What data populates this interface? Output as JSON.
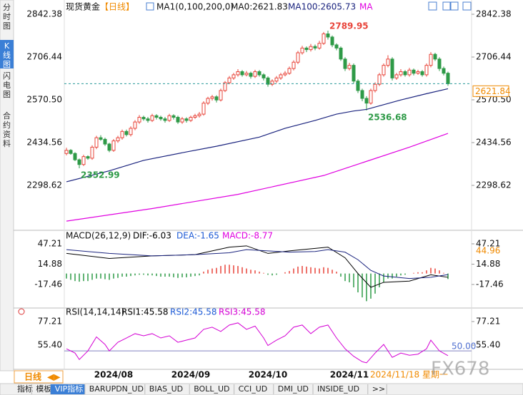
{
  "chart_data": {
    "type": "candlestick",
    "header": {
      "symbol": "现货黄金",
      "period": "【日线】",
      "indicator": "MA1(0,100,200,0)",
      "ma0": "MA0:2621.83"
    },
    "up_color": "#e8443a",
    "down_color": "#2e9a47",
    "ylim": [
      2162.67,
      2869.57
    ],
    "yticks": [
      2842.38,
      2706.44,
      {
        "value": 2570.5,
        "label": "2570.50"
      },
      2434.56,
      2298.62
    ],
    "categories": [
      null,
      null,
      null,
      null,
      null,
      null,
      null,
      null,
      null,
      null,
      null,
      "2024/08",
      null,
      null,
      null,
      null,
      null,
      null,
      null,
      null,
      null,
      null,
      null,
      null,
      null,
      null,
      null,
      null,
      null,
      "2024/09",
      null,
      null,
      null,
      null,
      null,
      null,
      null,
      null,
      null,
      null,
      null,
      null,
      null,
      null,
      null,
      null,
      null,
      "2024/10",
      null,
      null,
      null,
      null,
      null,
      null,
      null,
      null,
      null,
      null,
      null,
      null,
      null,
      null,
      null,
      null,
      null,
      null,
      "2024/11",
      null,
      null,
      null,
      null,
      null,
      null,
      null,
      null,
      null,
      null,
      null,
      null,
      null,
      null,
      null,
      null,
      null,
      null,
      null,
      null,
      null,
      null,
      null
    ],
    "candles": [
      [
        2400,
        2418,
        2394,
        2410
      ],
      [
        2410,
        2414,
        2396,
        2400
      ],
      [
        2400,
        2404,
        2376,
        2380
      ],
      [
        2380,
        2384,
        2352.99,
        2365
      ],
      [
        2365,
        2396,
        2360,
        2390
      ],
      [
        2390,
        2394,
        2380,
        2385
      ],
      [
        2385,
        2426,
        2380,
        2420
      ],
      [
        2420,
        2456,
        2414,
        2450
      ],
      [
        2450,
        2458,
        2440,
        2445
      ],
      [
        2445,
        2450,
        2424,
        2430
      ],
      [
        2430,
        2434,
        2404,
        2410
      ],
      [
        2410,
        2446,
        2405,
        2440
      ],
      [
        2440,
        2456,
        2434,
        2450
      ],
      [
        2450,
        2476,
        2444,
        2470
      ],
      [
        2470,
        2476,
        2454,
        2460
      ],
      [
        2460,
        2486,
        2454,
        2480
      ],
      [
        2480,
        2506,
        2474,
        2500
      ],
      [
        2500,
        2522,
        2494,
        2515
      ],
      [
        2515,
        2520,
        2504,
        2510
      ],
      [
        2510,
        2516,
        2498,
        2505
      ],
      [
        2505,
        2526,
        2500,
        2520
      ],
      [
        2520,
        2525,
        2508,
        2515
      ],
      [
        2515,
        2520,
        2504,
        2510
      ],
      [
        2510,
        2516,
        2498,
        2505
      ],
      [
        2505,
        2526,
        2500,
        2520
      ],
      [
        2520,
        2525,
        2508,
        2515
      ],
      [
        2515,
        2520,
        2494,
        2500
      ],
      [
        2500,
        2516,
        2494,
        2510
      ],
      [
        2510,
        2515,
        2498,
        2505
      ],
      [
        2505,
        2520,
        2500,
        2515
      ],
      [
        2515,
        2526,
        2510,
        2520
      ],
      [
        2520,
        2532,
        2514,
        2525
      ],
      [
        2525,
        2566,
        2520,
        2560
      ],
      [
        2560,
        2580,
        2554,
        2575
      ],
      [
        2575,
        2586,
        2568,
        2580
      ],
      [
        2580,
        2585,
        2562,
        2570
      ],
      [
        2570,
        2606,
        2565,
        2600
      ],
      [
        2600,
        2630,
        2595,
        2625
      ],
      [
        2625,
        2646,
        2620,
        2640
      ],
      [
        2640,
        2656,
        2634,
        2650
      ],
      [
        2650,
        2668,
        2644,
        2660
      ],
      [
        2660,
        2665,
        2644,
        2650
      ],
      [
        2650,
        2662,
        2645,
        2655
      ],
      [
        2655,
        2660,
        2638,
        2645
      ],
      [
        2645,
        2666,
        2640,
        2660
      ],
      [
        2660,
        2665,
        2644,
        2650
      ],
      [
        2650,
        2655,
        2632,
        2640
      ],
      [
        2640,
        2645,
        2612,
        2620
      ],
      [
        2620,
        2636,
        2614,
        2630
      ],
      [
        2630,
        2646,
        2624,
        2640
      ],
      [
        2640,
        2656,
        2634,
        2650
      ],
      [
        2650,
        2662,
        2645,
        2655
      ],
      [
        2655,
        2676,
        2650,
        2670
      ],
      [
        2670,
        2696,
        2664,
        2690
      ],
      [
        2690,
        2726,
        2684,
        2720
      ],
      [
        2720,
        2742,
        2714,
        2735
      ],
      [
        2735,
        2740,
        2722,
        2730
      ],
      [
        2730,
        2748,
        2724,
        2740
      ],
      [
        2740,
        2746,
        2728,
        2735
      ],
      [
        2735,
        2758,
        2730,
        2750
      ],
      [
        2750,
        2786,
        2745,
        2780
      ],
      [
        2780,
        2789.95,
        2762,
        2770
      ],
      [
        2770,
        2775,
        2738,
        2745
      ],
      [
        2745,
        2750,
        2728,
        2735
      ],
      [
        2735,
        2740,
        2694,
        2700
      ],
      [
        2700,
        2706,
        2662,
        2670
      ],
      [
        2670,
        2688,
        2664,
        2680
      ],
      [
        2680,
        2686,
        2622,
        2630
      ],
      [
        2630,
        2636,
        2592,
        2600
      ],
      [
        2600,
        2606,
        2566,
        2575
      ],
      [
        2575,
        2582,
        2536.68,
        2560
      ],
      [
        2560,
        2606,
        2555,
        2600
      ],
      [
        2600,
        2626,
        2594,
        2620
      ],
      [
        2620,
        2656,
        2614,
        2650
      ],
      [
        2650,
        2686,
        2644,
        2680
      ],
      [
        2680,
        2712,
        2674,
        2700
      ],
      [
        2700,
        2706,
        2632,
        2640
      ],
      [
        2640,
        2656,
        2634,
        2650
      ],
      [
        2650,
        2668,
        2644,
        2660
      ],
      [
        2660,
        2665,
        2644,
        2650
      ],
      [
        2650,
        2672,
        2644,
        2665
      ],
      [
        2665,
        2670,
        2648,
        2655
      ],
      [
        2655,
        2666,
        2650,
        2660
      ],
      [
        2660,
        2665,
        2644,
        2650
      ],
      [
        2650,
        2686,
        2644,
        2680
      ],
      [
        2680,
        2722,
        2674,
        2715
      ],
      [
        2715,
        2720,
        2694,
        2700
      ],
      [
        2700,
        2706,
        2662,
        2670
      ],
      [
        2670,
        2676,
        2648,
        2655
      ],
      [
        2655,
        2660,
        2615,
        2621.84
      ]
    ],
    "lines": [
      {
        "name": "MA100:2605.73",
        "color": "#1a237e",
        "x": [
          0,
          10,
          18,
          28,
          35,
          45,
          51,
          58,
          63,
          67,
          70,
          74,
          78,
          84,
          89
        ],
        "values": [
          2310,
          2345,
          2378,
          2405,
          2423,
          2452,
          2480,
          2505,
          2525,
          2535,
          2540,
          2555,
          2570,
          2590,
          2605.73
        ]
      },
      {
        "name": "MA",
        "color": "#e000e0",
        "x": [
          0,
          20,
          40,
          60,
          80,
          89
        ],
        "values": [
          2185,
          2225,
          2270,
          2330,
          2420,
          2464
        ]
      }
    ],
    "macd": {
      "title": "MACD(26,12,9)",
      "ylim": [
        -52.62,
        54.02
      ],
      "yticks": [
        47.21,
        14.88,
        -17.46
      ],
      "marker": 44.96,
      "histogram": [
        -8,
        -10,
        -12,
        -13,
        -12,
        -12,
        -10,
        -8,
        -8,
        -9,
        -10,
        -8,
        -7,
        -5,
        -5,
        -4,
        -3,
        -2,
        -2,
        -3,
        -3,
        -4,
        -5,
        -5,
        -5,
        -6,
        -7,
        -6,
        -6,
        -5,
        -4,
        -3,
        3,
        6,
        8,
        9,
        12,
        14,
        14,
        13,
        12,
        10,
        8,
        6,
        5,
        3,
        1,
        -2,
        -3,
        -2,
        0,
        2,
        4,
        8,
        11,
        12,
        11,
        10,
        9,
        8,
        10,
        9,
        6,
        3,
        -5,
        -12,
        -14,
        -22,
        -30,
        -38,
        -44,
        -40,
        -32,
        -22,
        -14,
        -8,
        -8,
        -5,
        -3,
        -2,
        0,
        1,
        2,
        2,
        5,
        9,
        8,
        5,
        1,
        -8.77
      ],
      "histogram_name": "MACD:-8.77",
      "histogram_color": "#e000e0",
      "series": [
        {
          "name": "DIF:-6.03",
          "color": "#000000",
          "x": [
            0,
            10,
            20,
            30,
            38,
            42,
            47,
            52,
            58,
            61,
            65,
            68,
            71,
            74,
            80,
            85,
            89
          ],
          "values": [
            32,
            24,
            28,
            30,
            42,
            44,
            32,
            36,
            40,
            42,
            25,
            0,
            -22,
            -14,
            -12,
            -2,
            -6.03
          ]
        },
        {
          "name": "DEA:-1.65",
          "color": "#1a237e",
          "x": [
            0,
            10,
            20,
            30,
            38,
            42,
            47,
            52,
            58,
            61,
            65,
            68,
            71,
            74,
            80,
            85,
            89
          ],
          "values": [
            38,
            32,
            28,
            30,
            33,
            38,
            36,
            34,
            35,
            38,
            34,
            22,
            5,
            -4,
            -8,
            -6,
            -1.65
          ]
        }
      ]
    },
    "rsi": {
      "title": "RSI(14,14,14)",
      "ylim": [
        34.91,
        84.48
      ],
      "yticks": [
        77.21,
        {
          "value": 55.4,
          "label": "55.40"
        }
      ],
      "ref": {
        "value": 50,
        "label": "50.00"
      },
      "series": [
        {
          "name": "RSI1:45.58",
          "color": "#000000"
        },
        {
          "name": "RSI2:45.58",
          "color": "#1e5bd6"
        },
        {
          "name": "RSI3:45.58",
          "color": "#d400d4",
          "x": [
            0,
            2,
            3,
            5,
            7,
            9,
            10,
            12,
            14,
            16,
            18,
            20,
            22,
            24,
            26,
            28,
            30,
            32,
            34,
            36,
            38,
            40,
            42,
            44,
            46,
            47,
            49,
            51,
            53,
            55,
            57,
            59,
            61,
            63,
            65,
            67,
            69,
            70,
            72,
            74,
            76,
            78,
            80,
            82,
            84,
            85,
            87,
            89
          ],
          "values": [
            52,
            48,
            42,
            50,
            63,
            56,
            50,
            58,
            62,
            66,
            64,
            66,
            62,
            64,
            58,
            60,
            62,
            70,
            72,
            68,
            74,
            76,
            70,
            73,
            62,
            55,
            60,
            64,
            72,
            74,
            66,
            72,
            74,
            62,
            52,
            45,
            40,
            39,
            48,
            56,
            44,
            48,
            46,
            47,
            52,
            60,
            50,
            45.58
          ]
        }
      ]
    },
    "date": "2024/11/18 星期一",
    "period_tab": "日线",
    "watermark": "FX678",
    "side_tabs": [
      "分时图",
      "K线图",
      "闪电图",
      "合约资料"
    ],
    "bottom_tabs": [
      "指标",
      "模板",
      "VIP指标",
      "BARUPDN_UD",
      "BIAS_UD",
      "BOLL_UD",
      "CCI_UD",
      "DMI_UD",
      "INSIDE_UD",
      ">>"
    ]
  }
}
